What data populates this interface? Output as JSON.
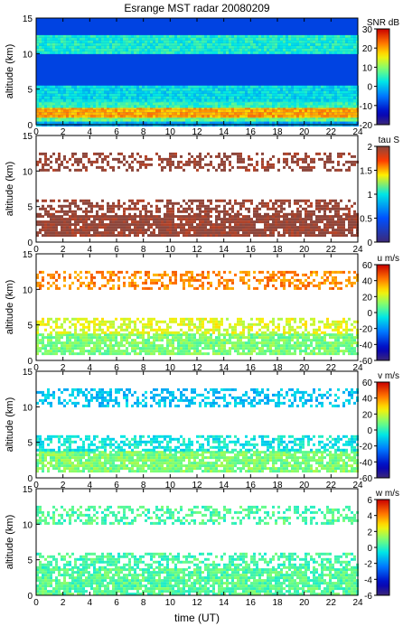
{
  "title": "Esrange MST radar 20080209",
  "xlabel": "time (UT)",
  "ylabel": "altitude (km)",
  "x_ticks": [
    "0",
    "2",
    "4",
    "6",
    "8",
    "10",
    "12",
    "14",
    "16",
    "18",
    "20",
    "22",
    "24"
  ],
  "y_ticks": [
    "0",
    "5",
    "10",
    "15"
  ],
  "chart_data": [
    {
      "type": "heatmap",
      "name": "snr",
      "colorbar_label": "SNR dB",
      "clim": [
        -20,
        30
      ],
      "colorbar_ticks": [
        "30",
        "20",
        "10",
        "0",
        "-10",
        "-20"
      ],
      "xlim": [
        0,
        24
      ],
      "ylim": [
        0,
        15
      ],
      "background": "filled",
      "layers": [
        {
          "y0": 0.0,
          "y1": 0.5,
          "value": -2,
          "density": 1.0
        },
        {
          "y0": 0.5,
          "y1": 1.2,
          "value": 8,
          "density": 1.0
        },
        {
          "y0": 1.2,
          "y1": 2.5,
          "value": 20,
          "density": 1.0
        },
        {
          "y0": 2.5,
          "y1": 3.5,
          "value": 5,
          "density": 1.0
        },
        {
          "y0": 3.5,
          "y1": 5.5,
          "value": 2,
          "density": 1.0
        },
        {
          "y0": 10.3,
          "y1": 12.6,
          "value": 4,
          "density": 1.0
        }
      ]
    },
    {
      "type": "heatmap",
      "name": "tau",
      "colorbar_label": "tau S",
      "clim": [
        0,
        2
      ],
      "colorbar_ticks": [
        "2",
        "1.5",
        "1",
        "0.5",
        "0"
      ],
      "xlim": [
        0,
        24
      ],
      "ylim": [
        0,
        15
      ],
      "background": "white",
      "layers": [
        {
          "y0": 1.0,
          "y1": 3.8,
          "value": 2.0,
          "density": 0.88
        },
        {
          "y0": 4.0,
          "y1": 6.0,
          "value": 2.0,
          "density": 0.55
        },
        {
          "y0": 10.2,
          "y1": 12.6,
          "value": 2.0,
          "density": 0.45
        }
      ]
    },
    {
      "type": "heatmap",
      "name": "u",
      "colorbar_label": "u m/s",
      "clim": [
        -60,
        60
      ],
      "colorbar_ticks": [
        "60",
        "40",
        "20",
        "0",
        "-20",
        "-40",
        "-60"
      ],
      "xlim": [
        0,
        24
      ],
      "ylim": [
        0,
        15
      ],
      "background": "white",
      "layers": [
        {
          "y0": 1.0,
          "y1": 3.8,
          "value": 10,
          "density": 0.85
        },
        {
          "y0": 4.0,
          "y1": 6.0,
          "value": 22,
          "density": 0.55
        },
        {
          "y0": 10.2,
          "y1": 12.6,
          "value": 40,
          "density": 0.45
        }
      ]
    },
    {
      "type": "heatmap",
      "name": "v",
      "colorbar_label": "v m/s",
      "clim": [
        -60,
        60
      ],
      "colorbar_ticks": [
        "60",
        "40",
        "20",
        "0",
        "-20",
        "-40",
        "-60"
      ],
      "xlim": [
        0,
        24
      ],
      "ylim": [
        0,
        15
      ],
      "background": "white",
      "layers": [
        {
          "y0": 1.0,
          "y1": 3.8,
          "value": 10,
          "density": 0.85
        },
        {
          "y0": 4.0,
          "y1": 6.0,
          "value": -5,
          "density": 0.55
        },
        {
          "y0": 10.2,
          "y1": 12.6,
          "value": -12,
          "density": 0.45
        }
      ]
    },
    {
      "type": "heatmap",
      "name": "w",
      "colorbar_label": "w m/s",
      "clim": [
        -6,
        6
      ],
      "colorbar_ticks": [
        "6",
        "4",
        "2",
        "0",
        "-2",
        "-4",
        "-6"
      ],
      "xlim": [
        0,
        24
      ],
      "ylim": [
        0,
        15
      ],
      "background": "white",
      "layers": [
        {
          "y0": 0.2,
          "y1": 3.8,
          "value": 0.5,
          "density": 0.85
        },
        {
          "y0": 4.0,
          "y1": 6.0,
          "value": 0.3,
          "density": 0.55
        },
        {
          "y0": 10.2,
          "y1": 12.6,
          "value": 0.4,
          "density": 0.45
        }
      ]
    }
  ]
}
